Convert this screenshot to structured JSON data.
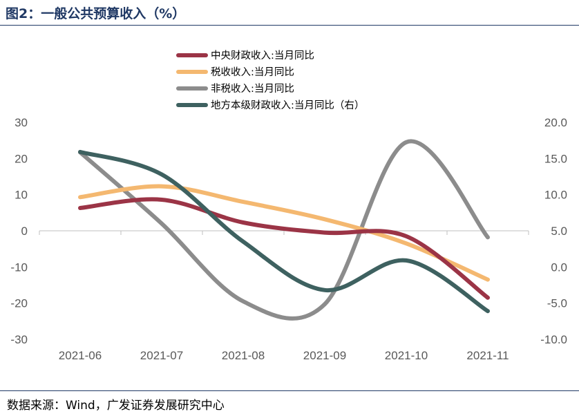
{
  "figure": {
    "title": "图2：一般公共预算收入（%）",
    "source": "数据来源：Wind，广发证券发展研究中心"
  },
  "chart_data": {
    "type": "line",
    "categories": [
      "2021-06",
      "2021-07",
      "2021-08",
      "2021-09",
      "2021-10",
      "2021-11"
    ],
    "y_left": {
      "range": [
        -30,
        30
      ],
      "ticks": [
        "30",
        "20",
        "10",
        "0",
        "-10",
        "-20",
        "-30"
      ]
    },
    "y_right": {
      "range": [
        -10,
        20
      ],
      "ticks": [
        "20.0",
        "15.0",
        "10.0",
        "5.0",
        "0.0",
        "-5.0",
        "-10.0"
      ]
    },
    "grid": false,
    "legend_position": "top",
    "series": [
      {
        "name": "中央财政收入:当月同比",
        "axis": "left",
        "color": "#9b3446",
        "values": [
          6.3,
          8.6,
          2.3,
          -0.5,
          -1.5,
          -18.5
        ]
      },
      {
        "name": "税收收入:当月同比",
        "axis": "left",
        "color": "#f4b870",
        "values": [
          9.3,
          12.3,
          8.0,
          3.2,
          -3.5,
          -13.5
        ]
      },
      {
        "name": "非税收入:当月同比",
        "axis": "left",
        "color": "#8c8c8c",
        "values": [
          21.7,
          2.0,
          -19.5,
          -20.3,
          24.5,
          -1.8
        ]
      },
      {
        "name": "地方本级财政收入:当月同比（右）",
        "axis": "right",
        "color": "#3e6160",
        "values": [
          15.9,
          12.8,
          3.5,
          -3.2,
          0.9,
          -6.1
        ]
      }
    ]
  }
}
